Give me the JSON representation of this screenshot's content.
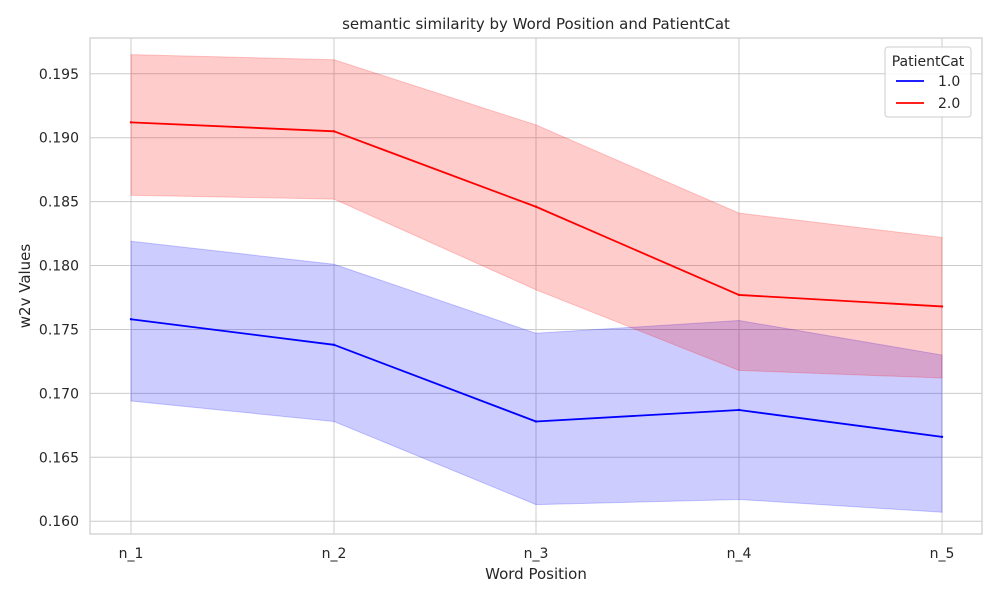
{
  "chart_data": {
    "type": "line",
    "title": "semantic similarity by Word Position and PatientCat",
    "xlabel": "Word Position",
    "ylabel": "w2v Values",
    "categories": [
      "n_1",
      "n_2",
      "n_3",
      "n_4",
      "n_5"
    ],
    "ylim": [
      0.159,
      0.1978
    ],
    "yticks": [
      0.16,
      0.165,
      0.17,
      0.175,
      0.18,
      0.185,
      0.19,
      0.195
    ],
    "yticklabels": [
      "0.160",
      "0.165",
      "0.170",
      "0.175",
      "0.180",
      "0.185",
      "0.190",
      "0.195"
    ],
    "grid": true,
    "legend": {
      "title": "PatientCat",
      "placement": "top-right"
    },
    "series": [
      {
        "name": "1.0",
        "color": "#0000ff",
        "values": [
          0.1758,
          0.1738,
          0.1678,
          0.1687,
          0.1666
        ],
        "lower": [
          0.1694,
          0.1678,
          0.1613,
          0.1617,
          0.1607
        ],
        "upper": [
          0.1819,
          0.1801,
          0.1747,
          0.1757,
          0.173
        ]
      },
      {
        "name": "2.0",
        "color": "#ff0000",
        "values": [
          0.1912,
          0.1905,
          0.1846,
          0.1777,
          0.1768
        ],
        "lower": [
          0.1855,
          0.1852,
          0.1781,
          0.1718,
          0.1712
        ],
        "upper": [
          0.1965,
          0.1961,
          0.191,
          0.1841,
          0.1822
        ]
      }
    ]
  }
}
